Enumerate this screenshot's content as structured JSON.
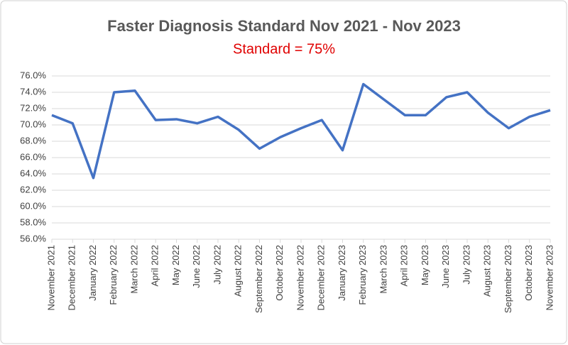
{
  "chart_data": {
    "type": "line",
    "title": "Faster Diagnosis Standard Nov 2021 - Nov 2023",
    "subtitle": "Standard = 75%",
    "categories": [
      "November 2021",
      "December 2021",
      "January 2022",
      "February 2022",
      "March 2022",
      "April 2022",
      "May 2022",
      "June 2022",
      "July 2022",
      "August 2022",
      "September 2022",
      "October 2022",
      "November 2022",
      "December 2022",
      "January 2023",
      "February 2023",
      "March 2023",
      "April 2023",
      "May 2023",
      "June 2023",
      "July 2023",
      "August 2023",
      "September 2023",
      "October 2023",
      "November 2023"
    ],
    "series": [
      {
        "color": "#4472c4",
        "values": [
          71.2,
          70.2,
          63.5,
          74.0,
          74.2,
          70.6,
          70.7,
          70.2,
          71.0,
          69.4,
          67.1,
          68.5,
          69.6,
          70.6,
          66.9,
          75.0,
          73.1,
          71.2,
          71.2,
          73.4,
          74.0,
          71.5,
          69.6,
          71.0,
          71.8
        ]
      }
    ],
    "ylim": [
      56,
      76
    ],
    "yticks": [
      {
        "value": 56,
        "label": "56.0%"
      },
      {
        "value": 58,
        "label": "58.0%"
      },
      {
        "value": 60,
        "label": "60.0%"
      },
      {
        "value": 62,
        "label": "62.0%"
      },
      {
        "value": 64,
        "label": "64.0%"
      },
      {
        "value": 66,
        "label": "66.0%"
      },
      {
        "value": 68,
        "label": "68.0%"
      },
      {
        "value": 70,
        "label": "70.0%"
      },
      {
        "value": 72,
        "label": "72.0%"
      },
      {
        "value": 74,
        "label": "74.0%"
      },
      {
        "value": 76,
        "label": "76.0%"
      }
    ],
    "grid": true
  }
}
